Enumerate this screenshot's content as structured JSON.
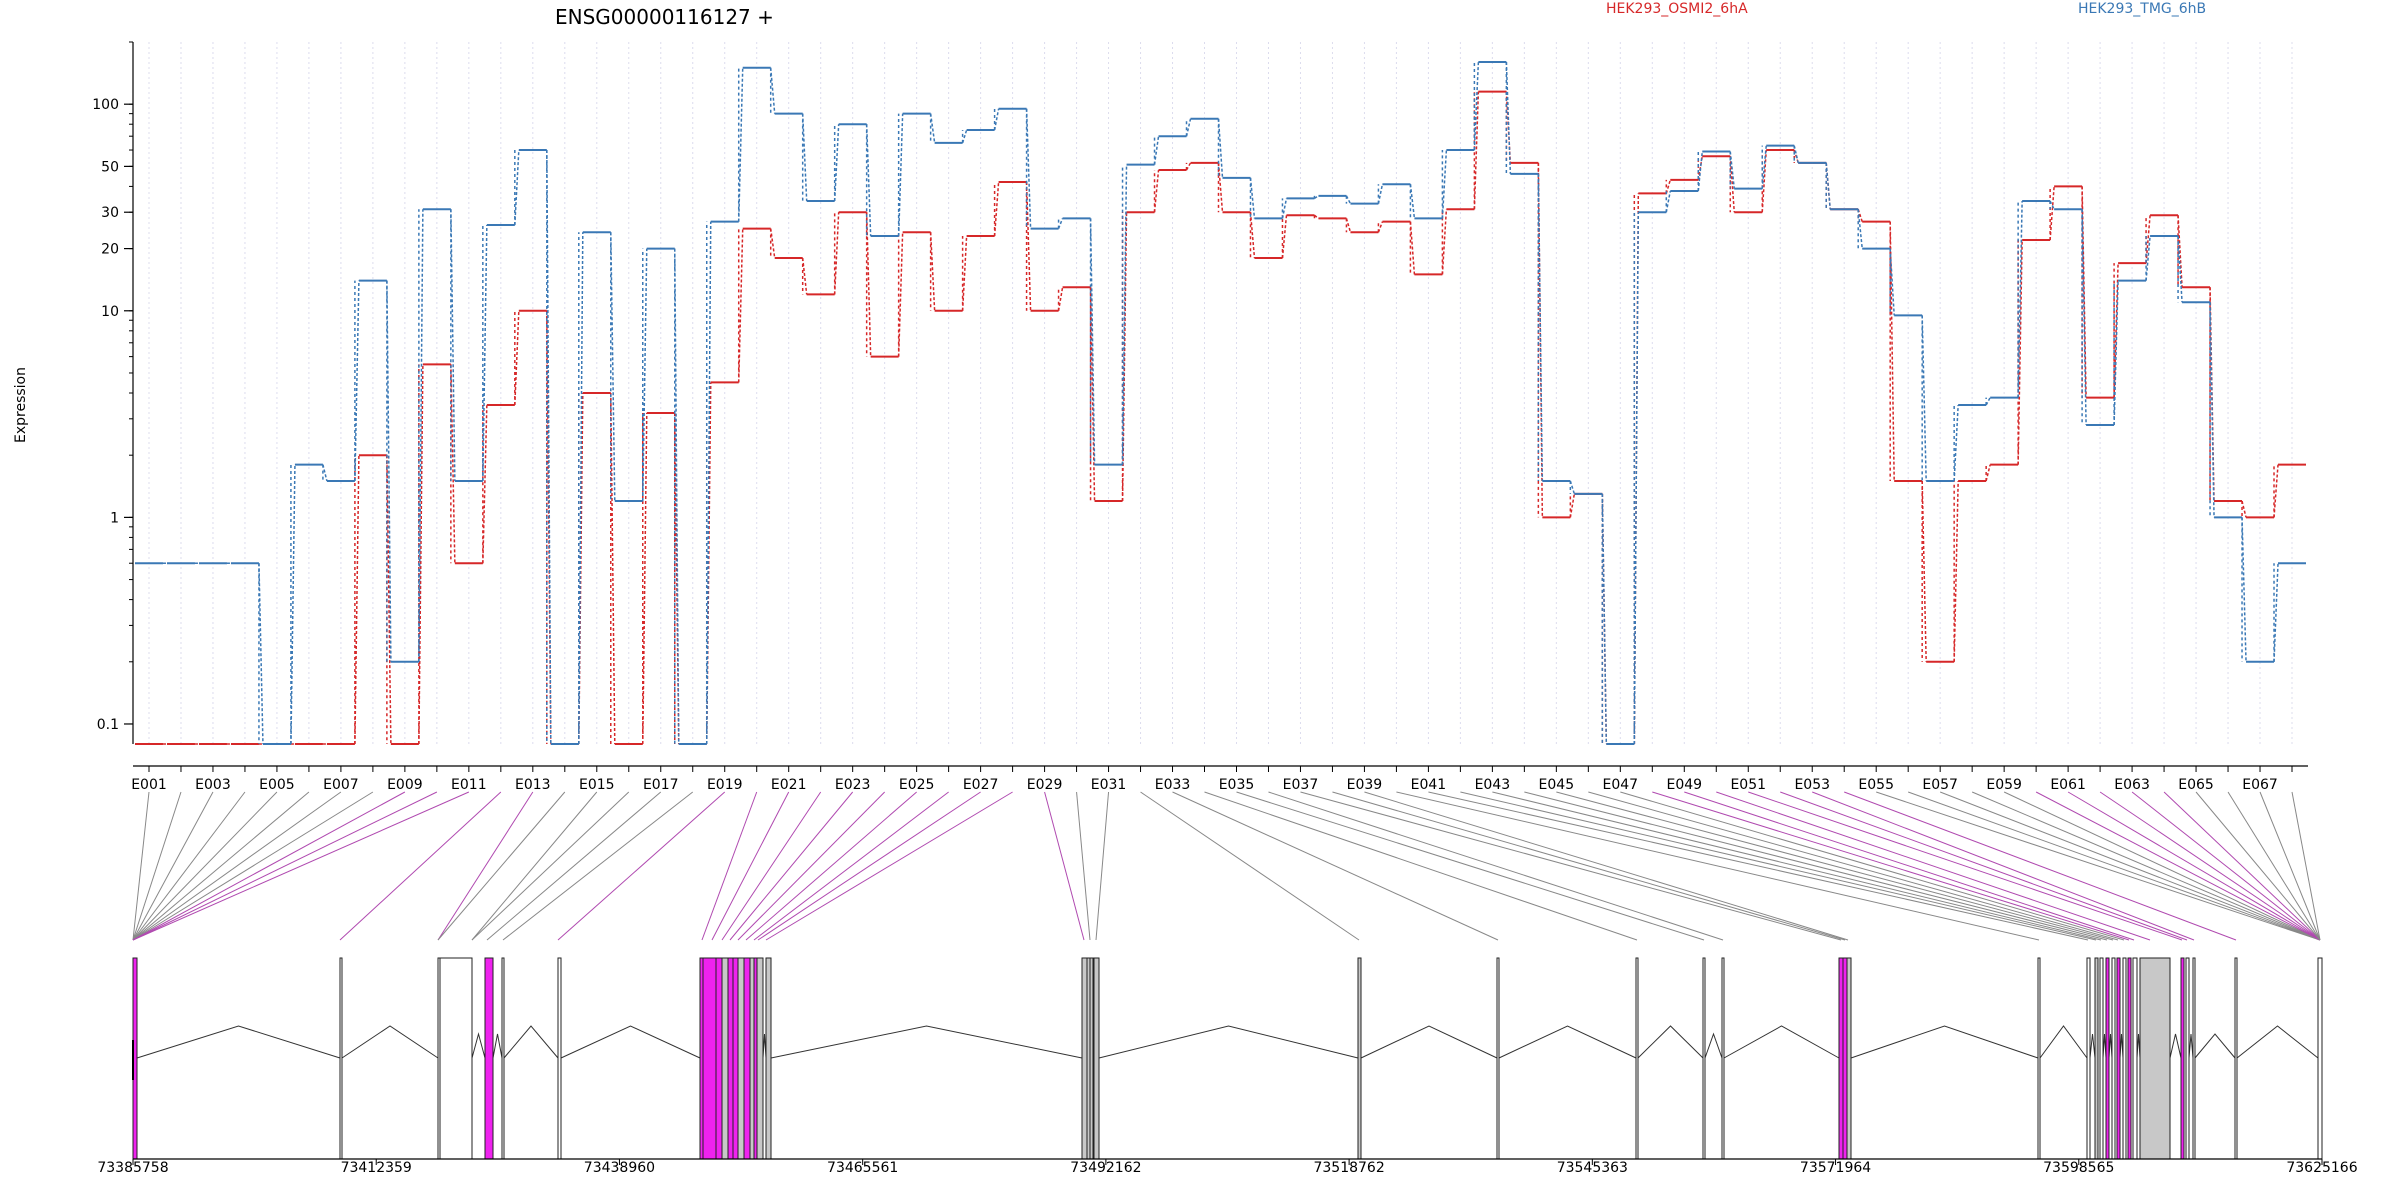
{
  "chart_data": {
    "type": "line",
    "title": "ENSG00000116127 +",
    "xlabel": "",
    "ylabel": "Expression",
    "yscale": "log",
    "ylim": [
      0.08,
      200
    ],
    "y_ticks": [
      {
        "value": 0.1,
        "label": "0.1"
      },
      {
        "value": 1,
        "label": "1"
      },
      {
        "value": 10,
        "label": "10"
      },
      {
        "value": 20,
        "label": "20"
      },
      {
        "value": 30,
        "label": "30"
      },
      {
        "value": 50,
        "label": "50"
      },
      {
        "value": 100,
        "label": "100"
      }
    ],
    "legend_placement": "top",
    "grid": "vertical dotted lines at each exon",
    "colors": {
      "series_a": "#d62728",
      "series_b": "#3a78b5",
      "exon_fill": "#ee22ee",
      "exon_fill_alt": "#c8c8c8"
    },
    "exon_labels": [
      "E001",
      "E003",
      "E005",
      "E007",
      "E009",
      "E011",
      "E013",
      "E015",
      "E017",
      "E019",
      "E021",
      "E023",
      "E025",
      "E027",
      "E029",
      "E031",
      "E033",
      "E035",
      "E037",
      "E039",
      "E041",
      "E043",
      "E045",
      "E047",
      "E049",
      "E051",
      "E053",
      "E055",
      "E057",
      "E059",
      "E061",
      "E063",
      "E065",
      "E067"
    ],
    "series": [
      {
        "name": "HEK293_OSMI2_6hA",
        "values": [
          0.08,
          0.08,
          0.08,
          0.08,
          0.08,
          0.08,
          0.08,
          2,
          0.08,
          5.5,
          0.6,
          3.5,
          10,
          0.08,
          4,
          0.08,
          3.2,
          0.08,
          4.5,
          25,
          18,
          12,
          30,
          6,
          24,
          10,
          23,
          42,
          10,
          13,
          1.2,
          30,
          48,
          52,
          30,
          18,
          29,
          28,
          24,
          27,
          15,
          31,
          115,
          52,
          1,
          1.3,
          0.08,
          37,
          43,
          56,
          30,
          60,
          52,
          31,
          27,
          1.5,
          0.2,
          1.5,
          1.8,
          22,
          40,
          3.8,
          17,
          29,
          13,
          1.2,
          1,
          1.8
        ]
      },
      {
        "name": "HEK293_TMG_6hB",
        "values": [
          0.6,
          0.6,
          0.6,
          0.6,
          0.08,
          1.8,
          1.5,
          14,
          0.2,
          31,
          1.5,
          26,
          60,
          0.08,
          24,
          1.2,
          20,
          0.08,
          27,
          150,
          90,
          34,
          80,
          23,
          90,
          65,
          75,
          95,
          25,
          28,
          1.8,
          51,
          70,
          85,
          44,
          28,
          35,
          36,
          33,
          41,
          28,
          60,
          160,
          46,
          1.5,
          1.3,
          0.08,
          30,
          38,
          59,
          39,
          63,
          52,
          31,
          20,
          9.5,
          1.5,
          3.5,
          3.8,
          34,
          31,
          2.8,
          14,
          23,
          11,
          1,
          0.2,
          0.6
        ]
      }
    ],
    "genomic_coordinates": [
      "73385758",
      "73412359",
      "73438960",
      "73465561",
      "73492162",
      "73518762",
      "73545363",
      "73571964",
      "73598565",
      "73625166"
    ]
  }
}
